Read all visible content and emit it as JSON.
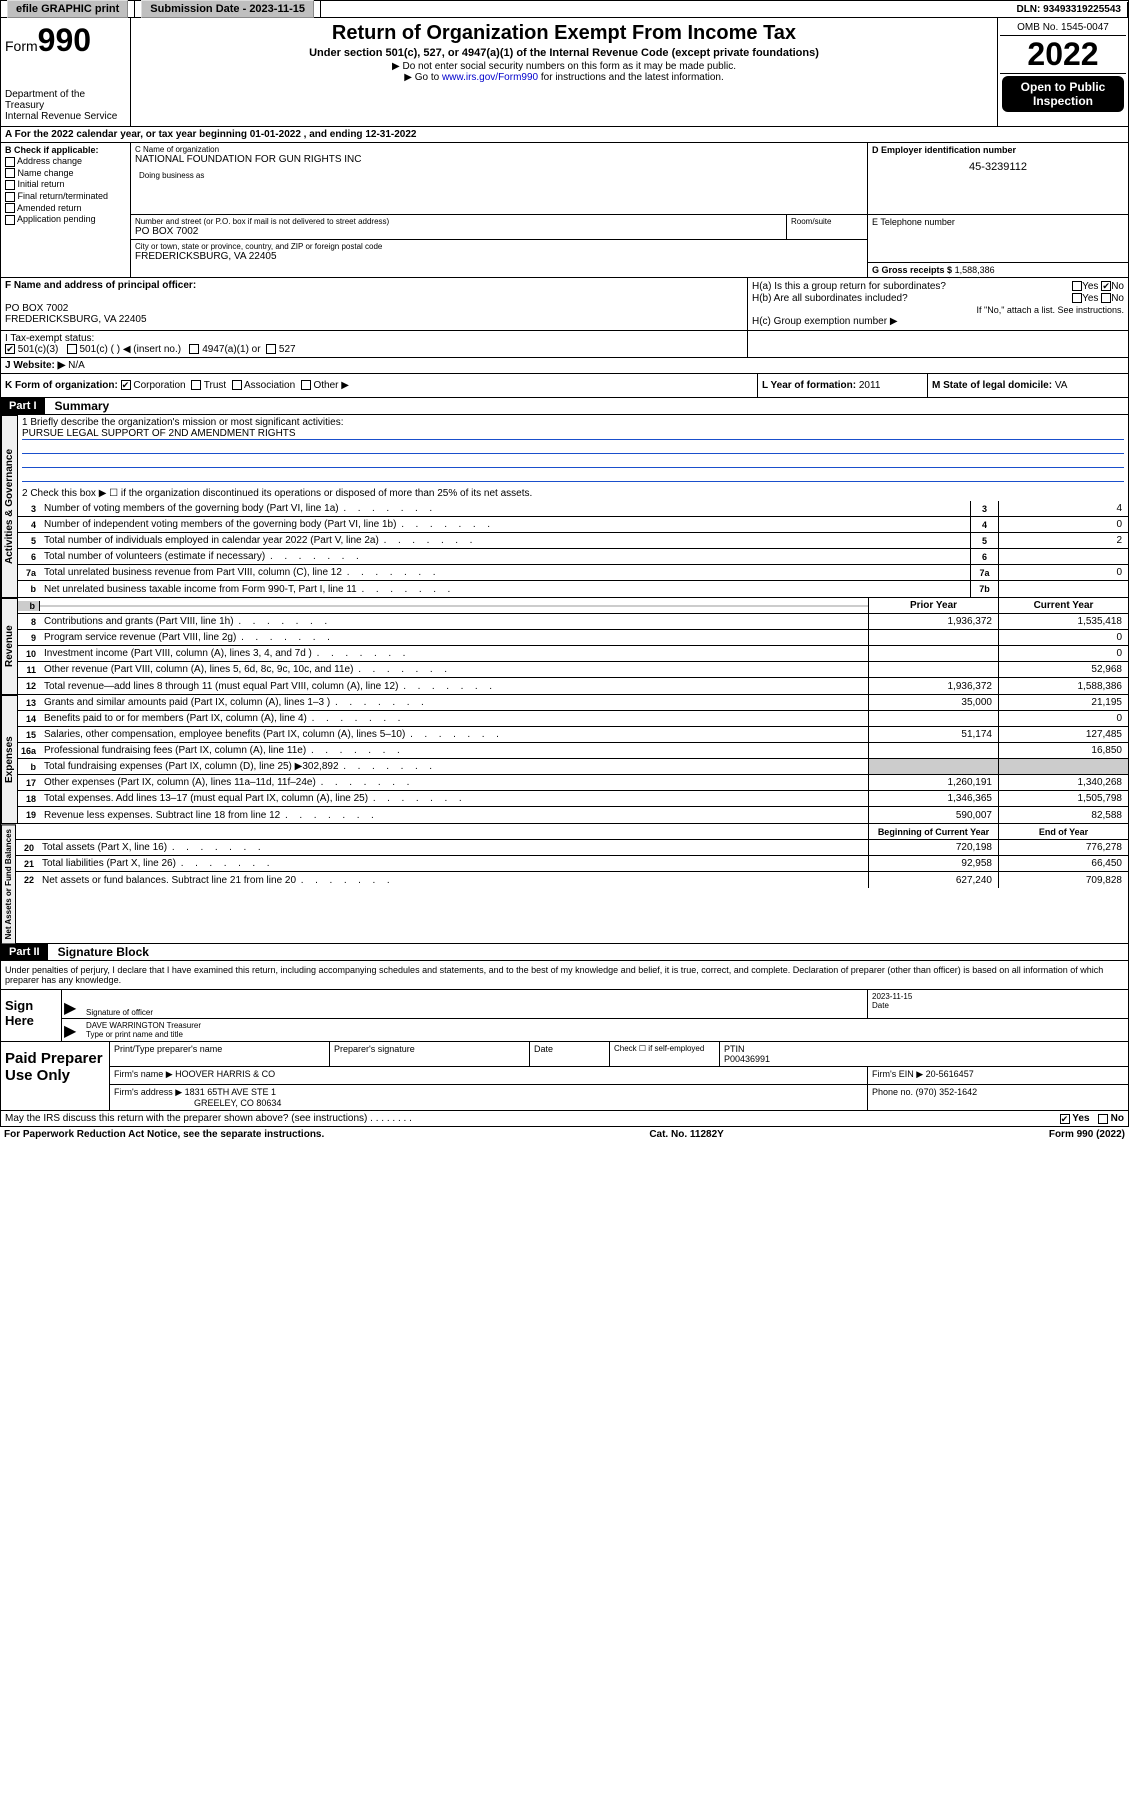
{
  "topbar": {
    "efile_label": "efile GRAPHIC print",
    "submission_label": "Submission Date - 2023-11-15",
    "dln_label": "DLN: 93493319225543"
  },
  "header": {
    "form_prefix": "Form",
    "form_number": "990",
    "dept": "Department of the Treasury",
    "irs": "Internal Revenue Service",
    "title": "Return of Organization Exempt From Income Tax",
    "sub1": "Under section 501(c), 527, or 4947(a)(1) of the Internal Revenue Code (except private foundations)",
    "sub2": "▶ Do not enter social security numbers on this form as it may be made public.",
    "sub3_pre": "▶ Go to ",
    "sub3_link": "www.irs.gov/Form990",
    "sub3_post": " for instructions and the latest information.",
    "omb": "OMB No. 1545-0047",
    "year": "2022",
    "open_public": "Open to Public Inspection"
  },
  "rowA": {
    "text": "A For the 2022 calendar year, or tax year beginning 01-01-2022     , and ending 12-31-2022"
  },
  "colB": {
    "header": "B Check if applicable:",
    "items": [
      "Address change",
      "Name change",
      "Initial return",
      "Final return/terminated",
      "Amended return",
      "Application pending"
    ]
  },
  "colC": {
    "name_lbl": "C Name of organization",
    "name": "NATIONAL FOUNDATION FOR GUN RIGHTS INC",
    "dba_lbl": "Doing business as",
    "street_lbl": "Number and street (or P.O. box if mail is not delivered to street address)",
    "room_lbl": "Room/suite",
    "street": "PO BOX 7002",
    "city_lbl": "City or town, state or province, country, and ZIP or foreign postal code",
    "city": "FREDERICKSBURG, VA  22405"
  },
  "colD": {
    "lbl": "D Employer identification number",
    "val": "45-3239112"
  },
  "colE": {
    "lbl": "E Telephone number",
    "val": ""
  },
  "colG": {
    "lbl": "G Gross receipts $",
    "val": "1,588,386"
  },
  "colF": {
    "lbl": "F Name and address of principal officer:",
    "line1": "PO BOX 7002",
    "line2": "FREDERICKSBURG, VA  22405"
  },
  "colH": {
    "ha": "H(a)  Is this a group return for subordinates?",
    "hb": "H(b)  Are all subordinates included?",
    "hb_note": "If \"No,\" attach a list. See instructions.",
    "hc": "H(c)  Group exemption number ▶",
    "yes": "Yes",
    "no": "No"
  },
  "rowI": {
    "lbl": "I     Tax-exempt status:",
    "opt1": "501(c)(3)",
    "opt2": "501(c) (   ) ◀ (insert no.)",
    "opt3": "4947(a)(1) or",
    "opt4": "527"
  },
  "rowJ": {
    "lbl": "J    Website: ▶",
    "val": "N/A"
  },
  "rowK": {
    "lbl": "K Form of organization:",
    "opts": [
      "Corporation",
      "Trust",
      "Association",
      "Other ▶"
    ]
  },
  "rowL": {
    "lbl": "L Year of formation:",
    "val": "2011"
  },
  "rowM": {
    "lbl": "M State of legal domicile:",
    "val": "VA"
  },
  "part1": {
    "hdr": "Part I",
    "title": "Summary"
  },
  "summary": {
    "q1_lbl": "1   Briefly describe the organization's mission or most significant activities:",
    "q1_val": "PURSUE LEGAL SUPPORT OF 2ND AMENDMENT RIGHTS",
    "q2": "2    Check this box ▶ ☐  if the organization discontinued its operations or disposed of more than 25% of its net assets.",
    "lines_gov": [
      {
        "n": "3",
        "d": "Number of voting members of the governing body (Part VI, line 1a)",
        "box": "3",
        "v": "4"
      },
      {
        "n": "4",
        "d": "Number of independent voting members of the governing body (Part VI, line 1b)",
        "box": "4",
        "v": "0"
      },
      {
        "n": "5",
        "d": "Total number of individuals employed in calendar year 2022 (Part V, line 2a)",
        "box": "5",
        "v": "2"
      },
      {
        "n": "6",
        "d": "Total number of volunteers (estimate if necessary)",
        "box": "6",
        "v": ""
      },
      {
        "n": "7a",
        "d": "Total unrelated business revenue from Part VIII, column (C), line 12",
        "box": "7a",
        "v": "0"
      },
      {
        "n": "b",
        "d": "Net unrelated business taxable income from Form 990-T, Part I, line 11",
        "box": "7b",
        "v": ""
      }
    ],
    "col_prior": "Prior Year",
    "col_current": "Current Year",
    "rev": [
      {
        "n": "8",
        "d": "Contributions and grants (Part VIII, line 1h)",
        "p": "1,936,372",
        "c": "1,535,418"
      },
      {
        "n": "9",
        "d": "Program service revenue (Part VIII, line 2g)",
        "p": "",
        "c": "0"
      },
      {
        "n": "10",
        "d": "Investment income (Part VIII, column (A), lines 3, 4, and 7d )",
        "p": "",
        "c": "0"
      },
      {
        "n": "11",
        "d": "Other revenue (Part VIII, column (A), lines 5, 6d, 8c, 9c, 10c, and 11e)",
        "p": "",
        "c": "52,968"
      },
      {
        "n": "12",
        "d": "Total revenue—add lines 8 through 11 (must equal Part VIII, column (A), line 12)",
        "p": "1,936,372",
        "c": "1,588,386"
      }
    ],
    "exp": [
      {
        "n": "13",
        "d": "Grants and similar amounts paid (Part IX, column (A), lines 1–3 )",
        "p": "35,000",
        "c": "21,195"
      },
      {
        "n": "14",
        "d": "Benefits paid to or for members (Part IX, column (A), line 4)",
        "p": "",
        "c": "0"
      },
      {
        "n": "15",
        "d": "Salaries, other compensation, employee benefits (Part IX, column (A), lines 5–10)",
        "p": "51,174",
        "c": "127,485"
      },
      {
        "n": "16a",
        "d": "Professional fundraising fees (Part IX, column (A), line 11e)",
        "p": "",
        "c": "16,850"
      },
      {
        "n": "b",
        "d": "Total fundraising expenses (Part IX, column (D), line 25) ▶302,892",
        "p": "shade",
        "c": "shade"
      },
      {
        "n": "17",
        "d": "Other expenses (Part IX, column (A), lines 11a–11d, 11f–24e)",
        "p": "1,260,191",
        "c": "1,340,268"
      },
      {
        "n": "18",
        "d": "Total expenses. Add lines 13–17 (must equal Part IX, column (A), line 25)",
        "p": "1,346,365",
        "c": "1,505,798"
      },
      {
        "n": "19",
        "d": "Revenue less expenses. Subtract line 18 from line 12",
        "p": "590,007",
        "c": "82,588"
      }
    ],
    "col_beg": "Beginning of Current Year",
    "col_end": "End of Year",
    "net": [
      {
        "n": "20",
        "d": "Total assets (Part X, line 16)",
        "p": "720,198",
        "c": "776,278"
      },
      {
        "n": "21",
        "d": "Total liabilities (Part X, line 26)",
        "p": "92,958",
        "c": "66,450"
      },
      {
        "n": "22",
        "d": "Net assets or fund balances. Subtract line 21 from line 20",
        "p": "627,240",
        "c": "709,828"
      }
    ]
  },
  "vtabs": {
    "gov": "Activities & Governance",
    "rev": "Revenue",
    "exp": "Expenses",
    "net": "Net Assets or Fund Balances"
  },
  "part2": {
    "hdr": "Part II",
    "title": "Signature Block"
  },
  "sig": {
    "penalty": "Under penalties of perjury, I declare that I have examined this return, including accompanying schedules and statements, and to the best of my knowledge and belief, it is true, correct, and complete. Declaration of preparer (other than officer) is based on all information of which preparer has any knowledge.",
    "sign_here": "Sign Here",
    "sig_officer_lbl": "Signature of officer",
    "date_lbl": "Date",
    "date_val": "2023-11-15",
    "name_title": "DAVE WARRINGTON  Treasurer",
    "name_title_lbl": "Type or print name and title"
  },
  "prep": {
    "left": "Paid Preparer Use Only",
    "print_lbl": "Print/Type preparer's name",
    "sig_lbl": "Preparer's signature",
    "date_lbl": "Date",
    "check_lbl": "Check ☐ if self-employed",
    "ptin_lbl": "PTIN",
    "ptin": "P00436991",
    "firm_name_lbl": "Firm's name     ▶",
    "firm_name": "HOOVER HARRIS & CO",
    "firm_ein_lbl": "Firm's EIN ▶",
    "firm_ein": "20-5616457",
    "firm_addr_lbl": "Firm's address ▶",
    "firm_addr1": "1831 65TH AVE STE 1",
    "firm_addr2": "GREELEY, CO  80634",
    "phone_lbl": "Phone no.",
    "phone": "(970) 352-1642"
  },
  "footer": {
    "discuss": "May the IRS discuss this return with the preparer shown above? (see instructions)",
    "yes": "Yes",
    "no": "No",
    "paperwork": "For Paperwork Reduction Act Notice, see the separate instructions.",
    "cat": "Cat. No. 11282Y",
    "form": "Form 990 (2022)"
  },
  "colors": {
    "link": "#0000cc",
    "uline": "#1a4fcc",
    "shade": "#cccccc"
  }
}
